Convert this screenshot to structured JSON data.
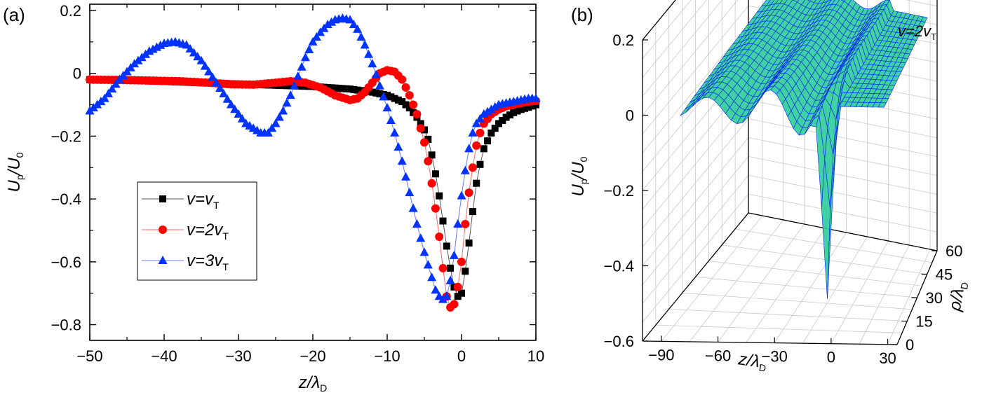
{
  "chart_data": [
    {
      "panel_label": "(a)",
      "type": "scatter",
      "xlabel": {
        "main": "z/λ",
        "sub": "D"
      },
      "ylabel": {
        "main": "U",
        "sub1": "p",
        "mid": "/U",
        "sub2": "0"
      },
      "xlim": [
        -50,
        10
      ],
      "ylim": [
        -0.85,
        0.22
      ],
      "x_ticks": [
        {
          "v": -50,
          "label": "−50"
        },
        {
          "v": -40,
          "label": "−40"
        },
        {
          "v": -30,
          "label": "−30"
        },
        {
          "v": -20,
          "label": "−20"
        },
        {
          "v": -10,
          "label": "−10"
        },
        {
          "v": 0,
          "label": "0"
        },
        {
          "v": 10,
          "label": "10"
        }
      ],
      "y_ticks": [
        {
          "v": 0.2,
          "label": "0.2"
        },
        {
          "v": 0,
          "label": "0"
        },
        {
          "v": -0.2,
          "label": "−0.2"
        },
        {
          "v": -0.4,
          "label": "−0.4"
        },
        {
          "v": -0.6,
          "label": "−0.6"
        },
        {
          "v": -0.8,
          "label": "−0.8"
        }
      ],
      "grid": false,
      "legend_position": "lower-left",
      "series": [
        {
          "legend_main": "v=v",
          "legend_sub": "T",
          "marker": "square",
          "color": "#000000",
          "line_color": "#555555",
          "points": [
            [
              -50,
              -0.02
            ],
            [
              -45,
              -0.022
            ],
            [
              -40,
              -0.026
            ],
            [
              -35,
              -0.03
            ],
            [
              -30,
              -0.034
            ],
            [
              -25,
              -0.038
            ],
            [
              -20,
              -0.042
            ],
            [
              -15,
              -0.05
            ],
            [
              -12,
              -0.06
            ],
            [
              -10,
              -0.07
            ],
            [
              -8,
              -0.09
            ],
            [
              -7,
              -0.11
            ],
            [
              -6,
              -0.14
            ],
            [
              -5,
              -0.18
            ],
            [
              -4.5,
              -0.21
            ],
            [
              -4,
              -0.26
            ],
            [
              -3.5,
              -0.32
            ],
            [
              -3,
              -0.39
            ],
            [
              -2.5,
              -0.47
            ],
            [
              -2,
              -0.55
            ],
            [
              -1.5,
              -0.62
            ],
            [
              -1,
              -0.68
            ],
            [
              -0.5,
              -0.71
            ],
            [
              0,
              -0.7
            ],
            [
              0.5,
              -0.63
            ],
            [
              1,
              -0.54
            ],
            [
              1.5,
              -0.44
            ],
            [
              2,
              -0.35
            ],
            [
              2.5,
              -0.29
            ],
            [
              3,
              -0.24
            ],
            [
              4,
              -0.19
            ],
            [
              5,
              -0.16
            ],
            [
              6,
              -0.14
            ],
            [
              7,
              -0.125
            ],
            [
              8,
              -0.115
            ],
            [
              9,
              -0.108
            ],
            [
              10,
              -0.1
            ]
          ]
        },
        {
          "legend_main": "v=2v",
          "legend_sub": "T",
          "marker": "circle",
          "color": "#ff0000",
          "line_color": "#ff6666",
          "points": [
            [
              -50,
              -0.02
            ],
            [
              -46,
              -0.021
            ],
            [
              -42,
              -0.023
            ],
            [
              -38,
              -0.025
            ],
            [
              -34,
              -0.03
            ],
            [
              -31,
              -0.035
            ],
            [
              -28,
              -0.036
            ],
            [
              -25,
              -0.03
            ],
            [
              -23,
              -0.025
            ],
            [
              -21,
              -0.03
            ],
            [
              -19,
              -0.045
            ],
            [
              -17,
              -0.07
            ],
            [
              -15,
              -0.085
            ],
            [
              -14,
              -0.08
            ],
            [
              -13,
              -0.06
            ],
            [
              -12,
              -0.03
            ],
            [
              -11,
              0.0
            ],
            [
              -10,
              0.01
            ],
            [
              -9,
              0.005
            ],
            [
              -8,
              -0.02
            ],
            [
              -7,
              -0.07
            ],
            [
              -6,
              -0.13
            ],
            [
              -5,
              -0.22
            ],
            [
              -4.5,
              -0.28
            ],
            [
              -4,
              -0.35
            ],
            [
              -3.5,
              -0.43
            ],
            [
              -3,
              -0.52
            ],
            [
              -2.5,
              -0.62
            ],
            [
              -2,
              -0.71
            ],
            [
              -1.5,
              -0.745
            ],
            [
              -1,
              -0.735
            ],
            [
              -0.5,
              -0.68
            ],
            [
              0,
              -0.6
            ],
            [
              0.5,
              -0.48
            ],
            [
              1,
              -0.38
            ],
            [
              1.5,
              -0.3
            ],
            [
              2,
              -0.23
            ],
            [
              2.5,
              -0.19
            ],
            [
              3,
              -0.16
            ],
            [
              4,
              -0.13
            ],
            [
              5,
              -0.115
            ],
            [
              6,
              -0.105
            ],
            [
              7,
              -0.1
            ],
            [
              8,
              -0.095
            ],
            [
              9,
              -0.09
            ],
            [
              10,
              -0.088
            ]
          ]
        },
        {
          "legend_main": "v=3v",
          "legend_sub": "T",
          "marker": "triangle",
          "color": "#0033ff",
          "line_color": "#6677ff",
          "points": [
            [
              -50,
              -0.12
            ],
            [
              -48,
              -0.08
            ],
            [
              -46,
              -0.02
            ],
            [
              -44,
              0.03
            ],
            [
              -42,
              0.07
            ],
            [
              -40,
              0.095
            ],
            [
              -38.5,
              0.1
            ],
            [
              -37,
              0.09
            ],
            [
              -35,
              0.04
            ],
            [
              -33,
              -0.03
            ],
            [
              -31,
              -0.1
            ],
            [
              -29,
              -0.16
            ],
            [
              -27,
              -0.19
            ],
            [
              -26,
              -0.19
            ],
            [
              -25,
              -0.16
            ],
            [
              -24,
              -0.12
            ],
            [
              -23,
              -0.07
            ],
            [
              -22,
              -0.01
            ],
            [
              -21,
              0.05
            ],
            [
              -20,
              0.1
            ],
            [
              -19,
              0.13
            ],
            [
              -18,
              0.155
            ],
            [
              -17,
              0.17
            ],
            [
              -16,
              0.175
            ],
            [
              -15,
              0.17
            ],
            [
              -14,
              0.14
            ],
            [
              -13,
              0.09
            ],
            [
              -12,
              0.03
            ],
            [
              -11,
              -0.04
            ],
            [
              -10,
              -0.11
            ],
            [
              -9,
              -0.19
            ],
            [
              -8,
              -0.28
            ],
            [
              -7,
              -0.38
            ],
            [
              -6,
              -0.48
            ],
            [
              -5,
              -0.57
            ],
            [
              -4,
              -0.65
            ],
            [
              -3.5,
              -0.69
            ],
            [
              -3,
              -0.71
            ],
            [
              -2.5,
              -0.72
            ],
            [
              -2,
              -0.71
            ],
            [
              -1.5,
              -0.66
            ],
            [
              -1,
              -0.58
            ],
            [
              -0.5,
              -0.48
            ],
            [
              0,
              -0.39
            ],
            [
              0.5,
              -0.31
            ],
            [
              1,
              -0.24
            ],
            [
              1.5,
              -0.19
            ],
            [
              2,
              -0.16
            ],
            [
              3,
              -0.13
            ],
            [
              4,
              -0.115
            ],
            [
              5,
              -0.1
            ],
            [
              6,
              -0.095
            ],
            [
              7,
              -0.09
            ],
            [
              8,
              -0.085
            ],
            [
              9,
              -0.08
            ],
            [
              10,
              -0.08
            ]
          ]
        }
      ]
    },
    {
      "panel_label": "(b)",
      "type": "surface",
      "annotation": {
        "main": "v=2v",
        "sub": "T"
      },
      "xlabel": {
        "main": "z/λ",
        "sub": "D"
      },
      "ylabel": {
        "main": "U",
        "sub1": "p",
        "mid": "/U",
        "sub2": "0"
      },
      "rholabel": {
        "main": "ρ/λ",
        "sub": "D"
      },
      "zlim": [
        -0.6,
        0.2
      ],
      "xlim": [
        -100,
        35
      ],
      "rholim": [
        0,
        60
      ],
      "z_ticks": [
        {
          "v": 0.2,
          "label": "0.2"
        },
        {
          "v": 0,
          "label": "0"
        },
        {
          "v": -0.2,
          "label": "−0.2"
        },
        {
          "v": -0.4,
          "label": "−0.4"
        },
        {
          "v": -0.6,
          "label": "−0.6"
        }
      ],
      "x_ticks": [
        {
          "v": -90,
          "label": "−90"
        },
        {
          "v": -60,
          "label": "−60"
        },
        {
          "v": -30,
          "label": "−30"
        },
        {
          "v": 0,
          "label": "0"
        },
        {
          "v": 30,
          "label": "30"
        }
      ],
      "rho_ticks": [
        {
          "v": 0,
          "label": "0"
        },
        {
          "v": 15,
          "label": "15"
        },
        {
          "v": 30,
          "label": "30"
        },
        {
          "v": 45,
          "label": "45"
        },
        {
          "v": 60,
          "label": "60"
        }
      ],
      "grid": true,
      "surface_color": "#2ecc9a",
      "mesh_color": "#0022ee"
    }
  ]
}
